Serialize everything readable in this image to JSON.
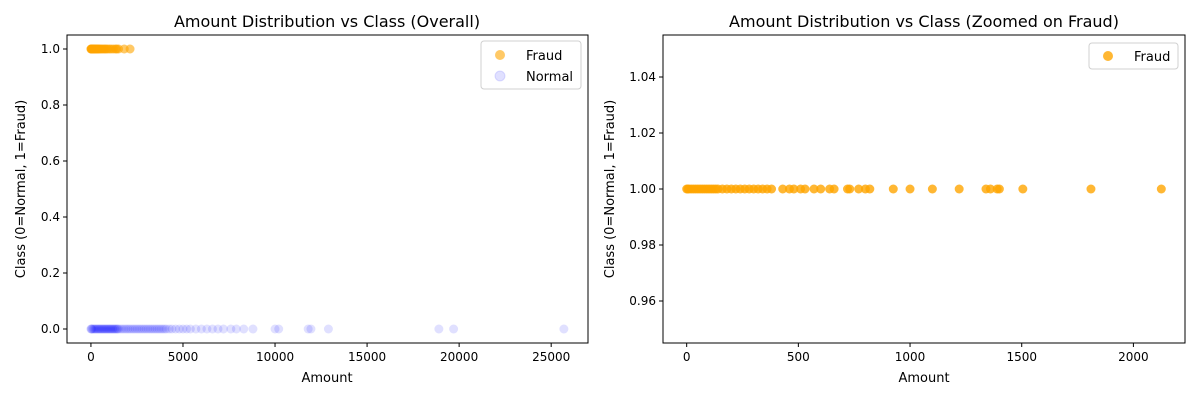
{
  "chart_data": [
    {
      "type": "scatter",
      "title": "Amount Distribution vs Class (Overall)",
      "xlabel": "Amount",
      "ylabel": "Class (0=Normal, 1=Fraud)",
      "xlim": [
        -1300,
        27000
      ],
      "ylim": [
        -0.05,
        1.05
      ],
      "xticks": [
        0,
        5000,
        10000,
        15000,
        20000,
        25000
      ],
      "xtick_labels": [
        "0",
        "5000",
        "10000",
        "15000",
        "20000",
        "25000"
      ],
      "yticks": [
        0.0,
        0.2,
        0.4,
        0.6,
        0.8,
        1.0
      ],
      "ytick_labels": [
        "0.0",
        "0.2",
        "0.4",
        "0.6",
        "0.8",
        "1.0"
      ],
      "legend_position": "top-right",
      "series": [
        {
          "name": "Fraud",
          "color": "#ffa500",
          "alpha": 0.6,
          "points": [
            [
              0,
              1
            ],
            [
              10,
              1
            ],
            [
              25,
              1
            ],
            [
              45,
              1
            ],
            [
              60,
              1
            ],
            [
              80,
              1
            ],
            [
              100,
              1
            ],
            [
              120,
              1
            ],
            [
              150,
              1
            ],
            [
              180,
              1
            ],
            [
              200,
              1
            ],
            [
              230,
              1
            ],
            [
              260,
              1
            ],
            [
              300,
              1
            ],
            [
              330,
              1
            ],
            [
              370,
              1
            ],
            [
              400,
              1
            ],
            [
              450,
              1
            ],
            [
              500,
              1
            ],
            [
              560,
              1
            ],
            [
              620,
              1
            ],
            [
              700,
              1
            ],
            [
              760,
              1
            ],
            [
              820,
              1
            ],
            [
              900,
              1
            ],
            [
              1000,
              1
            ],
            [
              1100,
              1
            ],
            [
              1220,
              1
            ],
            [
              1340,
              1
            ],
            [
              1400,
              1
            ],
            [
              1500,
              1
            ],
            [
              1810,
              1
            ],
            [
              2125,
              1
            ]
          ]
        },
        {
          "name": "Normal",
          "color": "#0000ff",
          "alpha": 0.12,
          "points": [
            [
              0,
              0
            ],
            [
              20,
              0
            ],
            [
              50,
              0
            ],
            [
              100,
              0
            ],
            [
              150,
              0
            ],
            [
              200,
              0
            ],
            [
              250,
              0
            ],
            [
              300,
              0
            ],
            [
              350,
              0
            ],
            [
              400,
              0
            ],
            [
              450,
              0
            ],
            [
              500,
              0
            ],
            [
              550,
              0
            ],
            [
              600,
              0
            ],
            [
              650,
              0
            ],
            [
              700,
              0
            ],
            [
              750,
              0
            ],
            [
              800,
              0
            ],
            [
              850,
              0
            ],
            [
              900,
              0
            ],
            [
              950,
              0
            ],
            [
              1000,
              0
            ],
            [
              1050,
              0
            ],
            [
              1100,
              0
            ],
            [
              1150,
              0
            ],
            [
              1200,
              0
            ],
            [
              1250,
              0
            ],
            [
              1300,
              0
            ],
            [
              1350,
              0
            ],
            [
              1400,
              0
            ],
            [
              1450,
              0
            ],
            [
              1500,
              0
            ],
            [
              1600,
              0
            ],
            [
              1700,
              0
            ],
            [
              1800,
              0
            ],
            [
              1900,
              0
            ],
            [
              2000,
              0
            ],
            [
              2100,
              0
            ],
            [
              2200,
              0
            ],
            [
              2300,
              0
            ],
            [
              2400,
              0
            ],
            [
              2500,
              0
            ],
            [
              2600,
              0
            ],
            [
              2700,
              0
            ],
            [
              2800,
              0
            ],
            [
              2900,
              0
            ],
            [
              3000,
              0
            ],
            [
              3100,
              0
            ],
            [
              3200,
              0
            ],
            [
              3300,
              0
            ],
            [
              3400,
              0
            ],
            [
              3500,
              0
            ],
            [
              3600,
              0
            ],
            [
              3700,
              0
            ],
            [
              3800,
              0
            ],
            [
              3900,
              0
            ],
            [
              4000,
              0
            ],
            [
              4100,
              0
            ],
            [
              4250,
              0
            ],
            [
              4400,
              0
            ],
            [
              4600,
              0
            ],
            [
              4800,
              0
            ],
            [
              5000,
              0
            ],
            [
              5200,
              0
            ],
            [
              5400,
              0
            ],
            [
              5700,
              0
            ],
            [
              6000,
              0
            ],
            [
              6300,
              0
            ],
            [
              6600,
              0
            ],
            [
              6900,
              0
            ],
            [
              7200,
              0
            ],
            [
              7600,
              0
            ],
            [
              7900,
              0
            ],
            [
              8300,
              0
            ],
            [
              8800,
              0
            ],
            [
              10000,
              0
            ],
            [
              10200,
              0
            ],
            [
              11800,
              0
            ],
            [
              11950,
              0
            ],
            [
              12900,
              0
            ],
            [
              18900,
              0
            ],
            [
              19700,
              0
            ],
            [
              25690,
              0
            ]
          ]
        }
      ]
    },
    {
      "type": "scatter",
      "title": "Amount Distribution vs Class (Zoomed on Fraud)",
      "xlabel": "Amount",
      "ylabel": "Class (0=Normal, 1=Fraud)",
      "xlim": [
        -106,
        2231
      ],
      "ylim": [
        0.945,
        1.055
      ],
      "xticks": [
        0,
        500,
        1000,
        1500,
        2000
      ],
      "xtick_labels": [
        "0",
        "500",
        "1000",
        "1500",
        "2000"
      ],
      "yticks": [
        0.96,
        0.98,
        1.0,
        1.02,
        1.04
      ],
      "ytick_labels": [
        "0.96",
        "0.98",
        "1.00",
        "1.02",
        "1.04"
      ],
      "legend_position": "top-right",
      "series": [
        {
          "name": "Fraud",
          "color": "#ffa500",
          "alpha": 0.8,
          "points": [
            [
              0,
              1
            ],
            [
              5,
              1
            ],
            [
              10,
              1
            ],
            [
              20,
              1
            ],
            [
              30,
              1
            ],
            [
              40,
              1
            ],
            [
              50,
              1
            ],
            [
              60,
              1
            ],
            [
              70,
              1
            ],
            [
              80,
              1
            ],
            [
              90,
              1
            ],
            [
              100,
              1
            ],
            [
              110,
              1
            ],
            [
              120,
              1
            ],
            [
              130,
              1
            ],
            [
              140,
              1
            ],
            [
              160,
              1
            ],
            [
              180,
              1
            ],
            [
              200,
              1
            ],
            [
              220,
              1
            ],
            [
              240,
              1
            ],
            [
              260,
              1
            ],
            [
              280,
              1
            ],
            [
              300,
              1
            ],
            [
              320,
              1
            ],
            [
              340,
              1
            ],
            [
              360,
              1
            ],
            [
              380,
              1
            ],
            [
              430,
              1
            ],
            [
              460,
              1
            ],
            [
              480,
              1
            ],
            [
              510,
              1
            ],
            [
              530,
              1
            ],
            [
              570,
              1
            ],
            [
              600,
              1
            ],
            [
              640,
              1
            ],
            [
              660,
              1
            ],
            [
              720,
              1
            ],
            [
              730,
              1
            ],
            [
              770,
              1
            ],
            [
              800,
              1
            ],
            [
              820,
              1
            ],
            [
              925,
              1
            ],
            [
              1000,
              1
            ],
            [
              1100,
              1
            ],
            [
              1220,
              1
            ],
            [
              1340,
              1
            ],
            [
              1360,
              1
            ],
            [
              1390,
              1
            ],
            [
              1400,
              1
            ],
            [
              1505,
              1
            ],
            [
              1810,
              1
            ],
            [
              2125,
              1
            ]
          ]
        }
      ]
    }
  ]
}
